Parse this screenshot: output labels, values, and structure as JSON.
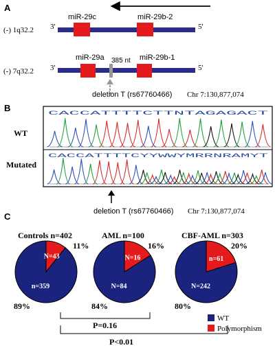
{
  "panelA": {
    "label": "A",
    "row1": {
      "locus": "(-) 1q32.2",
      "end3": "3'",
      "end5": "5'",
      "gene1": "miR-29c",
      "gene2": "miR-29b-2"
    },
    "row2": {
      "locus": "(-) 7q32.2",
      "end3": "3'",
      "end5": "5'",
      "gene1": "miR-29a",
      "gene2": "miR-29b-1",
      "distance": "385 nt"
    },
    "deletion_label": "deletion T (rs67760466)",
    "chr_label": "Chr 7:130,877,074",
    "colors": {
      "bar": "#2b2b8c",
      "gene": "#e41a1c",
      "deletion": "#999999"
    }
  },
  "panelB": {
    "label": "B",
    "wt_label": "WT",
    "mut_label": "Mutated",
    "wt_seq": "CACCATTTTCTTNTAGAGACT",
    "mut_seq": "CACCATTTTCYYWWYMRRNRAMYT",
    "deletion_label": "deletion T (rs67760466)",
    "chr_label": "Chr 7:130,877,074"
  },
  "panelC": {
    "label": "C",
    "pvalue1": "P=0.16",
    "pvalue2": "P<0.01",
    "legend": [
      {
        "label": "WT",
        "color": "#1a237e"
      },
      {
        "label": "Polymorphism",
        "color": "#e41a1c"
      }
    ]
  },
  "chart_data": {
    "type": "pie",
    "charts": [
      {
        "title": "Controls n=402",
        "slices": [
          {
            "label": "WT",
            "count_label": "n=359",
            "value": 359,
            "percent_label": "89%"
          },
          {
            "label": "Polymorphism",
            "count_label": "N=43",
            "value": 43,
            "percent_label": "11%"
          }
        ]
      },
      {
        "title": "AML n=100",
        "slices": [
          {
            "label": "WT",
            "count_label": "N=84",
            "value": 84,
            "percent_label": "84%"
          },
          {
            "label": "Polymorphism",
            "count_label": "N=16",
            "value": 16,
            "percent_label": "16%"
          }
        ]
      },
      {
        "title": "CBF-AML n=303",
        "slices": [
          {
            "label": "WT",
            "count_label": "N=242",
            "value": 242,
            "percent_label": "80%"
          },
          {
            "label": "Polymorphism",
            "count_label": "n=61",
            "value": 61,
            "percent_label": "20%"
          }
        ]
      }
    ]
  }
}
